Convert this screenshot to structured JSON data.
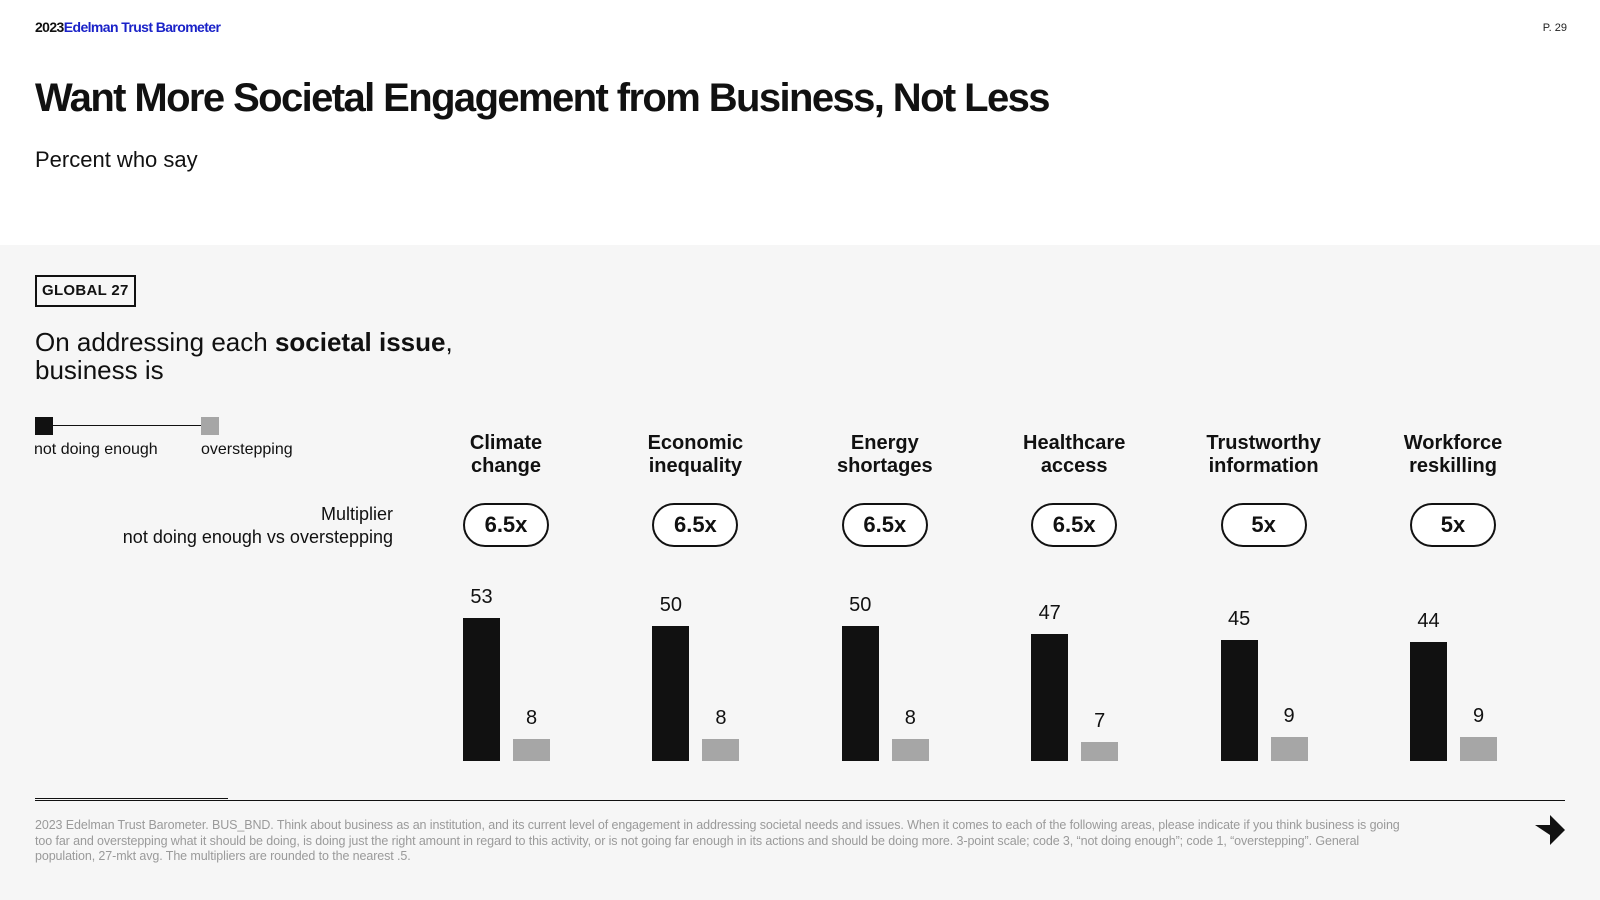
{
  "header": {
    "brand_year": "2023",
    "brand_name": "Edelman Trust Barometer",
    "page_number": "P. 29"
  },
  "title": "Want More Societal Engagement from Business, Not Less",
  "subtitle": "Percent who say",
  "tag": "GLOBAL 27",
  "question": {
    "prefix": "On addressing each ",
    "bold": "societal issue",
    "suffix": ",",
    "line2": "business is"
  },
  "legend": {
    "not_doing_enough": "not doing enough",
    "overstepping": "overstepping"
  },
  "multiplier": {
    "label_line1": "Multiplier",
    "label_line2": "not doing enough vs overstepping"
  },
  "colors": {
    "brand_blue": "#1a22c8",
    "not_doing_enough": "#111111",
    "overstepping": "#a6a6a6",
    "panel_bg": "#f6f6f6"
  },
  "chart_data": {
    "type": "bar",
    "categories": [
      {
        "line1": "Climate",
        "line2": "change"
      },
      {
        "line1": "Economic",
        "line2": "inequality"
      },
      {
        "line1": "Energy",
        "line2": "shortages"
      },
      {
        "line1": "Healthcare",
        "line2": "access"
      },
      {
        "line1": "Trustworthy",
        "line2": "information"
      },
      {
        "line1": "Workforce",
        "line2": "reskilling"
      }
    ],
    "multipliers": [
      "6.5x",
      "6.5x",
      "6.5x",
      "6.5x",
      "5x",
      "5x"
    ],
    "series": [
      {
        "name": "not doing enough",
        "values": [
          53,
          50,
          50,
          47,
          45,
          44
        ]
      },
      {
        "name": "overstepping",
        "values": [
          8,
          8,
          8,
          7,
          9,
          9
        ]
      }
    ],
    "ylim": [
      0,
      100
    ],
    "grid": false
  },
  "footnote": "2023 Edelman Trust Barometer. BUS_BND. Think about business as an institution, and its current level of engagement in addressing societal needs and issues. When it comes to each of the following areas, please indicate if you think business is going too far and overstepping what it should be doing, is doing just the right amount in regard to this activity, or is not going far enough in its actions and should be doing more. 3-point scale; code 3, “not doing enough”; code 1, “overstepping”. General population, 27-mkt avg. The multipliers are rounded to the nearest .5.",
  "icons": {
    "next": "arrow-right-icon"
  }
}
